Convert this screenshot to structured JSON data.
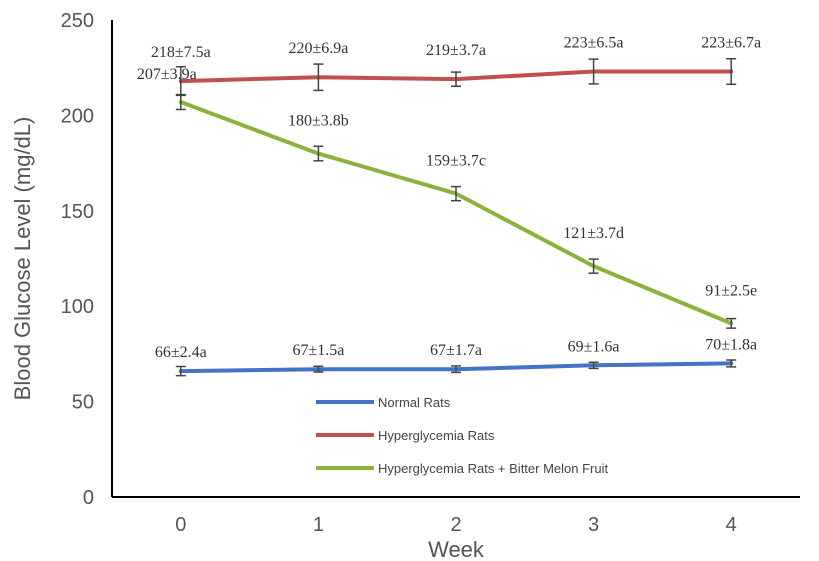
{
  "chart_data": {
    "type": "line",
    "xlabel": "Week",
    "ylabel": "Blood Glucose Level (mg/dL)",
    "x": [
      0,
      1,
      2,
      3,
      4
    ],
    "xlim": [
      -0.5,
      4.5
    ],
    "ylim": [
      0,
      250
    ],
    "yticks": [
      0,
      50,
      100,
      150,
      200,
      250
    ],
    "grid": false,
    "legend_position": "bottom-center",
    "series": [
      {
        "name": "Normal Rats",
        "color": "#4472C4",
        "values": [
          66,
          67,
          67,
          69,
          70
        ],
        "errors": [
          2.4,
          1.5,
          1.7,
          1.6,
          1.8
        ],
        "labels": [
          "66±2.4a",
          "67±1.5a",
          "67±1.7a",
          "69±1.6a",
          "70±1.8a"
        ]
      },
      {
        "name": "Hyperglycemia Rats",
        "color": "#C0504D",
        "values": [
          218,
          220,
          219,
          223,
          223
        ],
        "errors": [
          7.5,
          6.9,
          3.7,
          6.5,
          6.7
        ],
        "labels": [
          "218±7.5a",
          "220±6.9a",
          "219±3.7a",
          "223±6.5a",
          "223±6.7a"
        ]
      },
      {
        "name": "Hyperglycemia Rats + Bitter Melon Fruit",
        "color": "#8DB13F",
        "values": [
          207,
          180,
          159,
          121,
          91
        ],
        "errors": [
          3.9,
          3.8,
          3.7,
          3.7,
          2.5
        ],
        "labels": [
          "207±3.9a",
          "180±3.8b",
          "159±3.7c",
          "121±3.7d",
          "91±2.5e"
        ]
      }
    ]
  }
}
